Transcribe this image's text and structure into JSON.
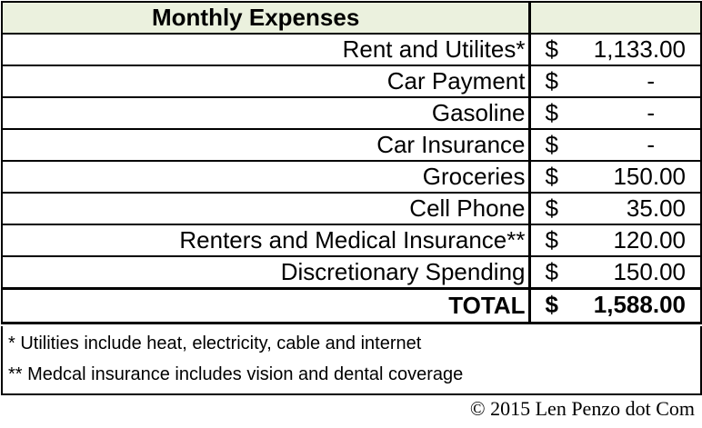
{
  "title": "Monthly Expenses",
  "currency_symbol": "$",
  "rows": [
    {
      "label": "Rent and Utilites*",
      "amount": "1,133.00"
    },
    {
      "label": "Car Payment",
      "amount": "-"
    },
    {
      "label": "Gasoline",
      "amount": "-"
    },
    {
      "label": "Car Insurance",
      "amount": "-"
    },
    {
      "label": "Groceries",
      "amount": "150.00"
    },
    {
      "label": "Cell Phone",
      "amount": "35.00"
    },
    {
      "label": "Renters and Medical Insurance**",
      "amount": "120.00"
    },
    {
      "label": "Discretionary Spending",
      "amount": "150.00"
    }
  ],
  "total": {
    "label": "TOTAL",
    "amount": "1,588.00"
  },
  "notes": [
    "* Utilities include heat, electricity, cable and internet",
    "** Medcal insurance includes vision and dental coverage"
  ],
  "copyright": "© 2015 Len Penzo dot Com",
  "colors": {
    "header_bg": "#ebf1de"
  }
}
